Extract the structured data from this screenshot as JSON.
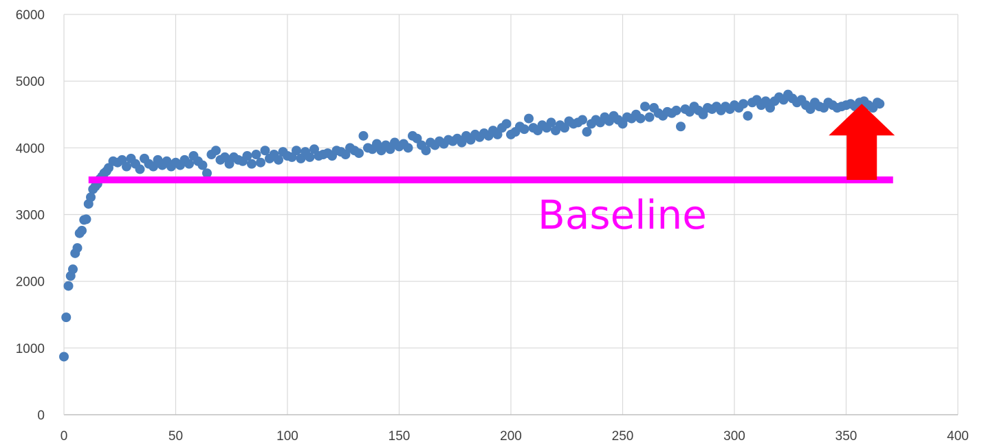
{
  "chart_data": {
    "type": "scatter",
    "title": "",
    "xlabel": "",
    "ylabel": "",
    "xlim": [
      0,
      400
    ],
    "ylim": [
      0,
      6000
    ],
    "x_ticks": [
      0,
      50,
      100,
      150,
      200,
      250,
      300,
      350,
      400
    ],
    "y_ticks": [
      0,
      1000,
      2000,
      3000,
      4000,
      5000,
      6000
    ],
    "x_tick_labels": [
      "0",
      "50",
      "100",
      "150",
      "200",
      "250",
      "300",
      "350",
      "400"
    ],
    "y_tick_labels": [
      "0",
      "1000",
      "2000",
      "3000",
      "4000",
      "5000",
      "6000"
    ],
    "grid": true,
    "legend": "none",
    "series": [
      {
        "color": "#4a7ebb",
        "points": [
          [
            0,
            870
          ],
          [
            1,
            1460
          ],
          [
            2,
            1930
          ],
          [
            3,
            2080
          ],
          [
            4,
            2180
          ],
          [
            5,
            2420
          ],
          [
            6,
            2500
          ],
          [
            7,
            2720
          ],
          [
            8,
            2760
          ],
          [
            9,
            2920
          ],
          [
            10,
            2930
          ],
          [
            11,
            3160
          ],
          [
            12,
            3260
          ],
          [
            13,
            3380
          ],
          [
            14,
            3420
          ],
          [
            15,
            3460
          ],
          [
            16,
            3530
          ],
          [
            17,
            3570
          ],
          [
            18,
            3620
          ],
          [
            19,
            3650
          ],
          [
            20,
            3700
          ],
          [
            22,
            3800
          ],
          [
            24,
            3780
          ],
          [
            26,
            3820
          ],
          [
            28,
            3720
          ],
          [
            30,
            3840
          ],
          [
            32,
            3760
          ],
          [
            34,
            3680
          ],
          [
            36,
            3840
          ],
          [
            38,
            3760
          ],
          [
            40,
            3720
          ],
          [
            42,
            3820
          ],
          [
            44,
            3740
          ],
          [
            46,
            3800
          ],
          [
            48,
            3720
          ],
          [
            50,
            3780
          ],
          [
            52,
            3740
          ],
          [
            54,
            3820
          ],
          [
            56,
            3760
          ],
          [
            58,
            3880
          ],
          [
            60,
            3800
          ],
          [
            62,
            3740
          ],
          [
            64,
            3620
          ],
          [
            66,
            3900
          ],
          [
            68,
            3960
          ],
          [
            70,
            3820
          ],
          [
            72,
            3860
          ],
          [
            74,
            3760
          ],
          [
            76,
            3860
          ],
          [
            78,
            3820
          ],
          [
            80,
            3800
          ],
          [
            82,
            3880
          ],
          [
            84,
            3760
          ],
          [
            86,
            3900
          ],
          [
            88,
            3780
          ],
          [
            90,
            3960
          ],
          [
            92,
            3840
          ],
          [
            94,
            3900
          ],
          [
            96,
            3820
          ],
          [
            98,
            3940
          ],
          [
            100,
            3880
          ],
          [
            102,
            3860
          ],
          [
            104,
            3960
          ],
          [
            106,
            3840
          ],
          [
            108,
            3940
          ],
          [
            110,
            3860
          ],
          [
            112,
            3980
          ],
          [
            114,
            3880
          ],
          [
            116,
            3900
          ],
          [
            118,
            3920
          ],
          [
            120,
            3880
          ],
          [
            122,
            3960
          ],
          [
            124,
            3940
          ],
          [
            126,
            3900
          ],
          [
            128,
            4000
          ],
          [
            130,
            3960
          ],
          [
            132,
            3920
          ],
          [
            134,
            4180
          ],
          [
            136,
            4000
          ],
          [
            138,
            3980
          ],
          [
            140,
            4060
          ],
          [
            142,
            3960
          ],
          [
            144,
            4040
          ],
          [
            146,
            3980
          ],
          [
            148,
            4080
          ],
          [
            150,
            4020
          ],
          [
            152,
            4060
          ],
          [
            154,
            4000
          ],
          [
            156,
            4180
          ],
          [
            158,
            4140
          ],
          [
            160,
            4040
          ],
          [
            162,
            3960
          ],
          [
            164,
            4080
          ],
          [
            166,
            4040
          ],
          [
            168,
            4100
          ],
          [
            170,
            4060
          ],
          [
            172,
            4120
          ],
          [
            174,
            4100
          ],
          [
            176,
            4140
          ],
          [
            178,
            4080
          ],
          [
            180,
            4180
          ],
          [
            182,
            4120
          ],
          [
            184,
            4200
          ],
          [
            186,
            4160
          ],
          [
            188,
            4220
          ],
          [
            190,
            4180
          ],
          [
            192,
            4260
          ],
          [
            194,
            4200
          ],
          [
            196,
            4300
          ],
          [
            198,
            4360
          ],
          [
            200,
            4200
          ],
          [
            202,
            4240
          ],
          [
            204,
            4320
          ],
          [
            206,
            4280
          ],
          [
            208,
            4440
          ],
          [
            210,
            4300
          ],
          [
            212,
            4260
          ],
          [
            214,
            4340
          ],
          [
            216,
            4300
          ],
          [
            218,
            4380
          ],
          [
            220,
            4260
          ],
          [
            222,
            4340
          ],
          [
            224,
            4300
          ],
          [
            226,
            4400
          ],
          [
            228,
            4360
          ],
          [
            230,
            4380
          ],
          [
            232,
            4420
          ],
          [
            234,
            4240
          ],
          [
            236,
            4360
          ],
          [
            238,
            4420
          ],
          [
            240,
            4380
          ],
          [
            242,
            4460
          ],
          [
            244,
            4400
          ],
          [
            246,
            4480
          ],
          [
            248,
            4420
          ],
          [
            250,
            4360
          ],
          [
            252,
            4460
          ],
          [
            254,
            4440
          ],
          [
            256,
            4500
          ],
          [
            258,
            4440
          ],
          [
            260,
            4620
          ],
          [
            262,
            4460
          ],
          [
            264,
            4600
          ],
          [
            266,
            4520
          ],
          [
            268,
            4480
          ],
          [
            270,
            4540
          ],
          [
            272,
            4520
          ],
          [
            274,
            4560
          ],
          [
            276,
            4320
          ],
          [
            278,
            4580
          ],
          [
            280,
            4540
          ],
          [
            282,
            4620
          ],
          [
            284,
            4560
          ],
          [
            286,
            4500
          ],
          [
            288,
            4600
          ],
          [
            290,
            4580
          ],
          [
            292,
            4620
          ],
          [
            294,
            4560
          ],
          [
            296,
            4620
          ],
          [
            298,
            4580
          ],
          [
            300,
            4640
          ],
          [
            302,
            4600
          ],
          [
            304,
            4660
          ],
          [
            306,
            4480
          ],
          [
            308,
            4680
          ],
          [
            310,
            4720
          ],
          [
            312,
            4640
          ],
          [
            314,
            4700
          ],
          [
            316,
            4600
          ],
          [
            318,
            4700
          ],
          [
            320,
            4760
          ],
          [
            322,
            4720
          ],
          [
            324,
            4800
          ],
          [
            326,
            4740
          ],
          [
            328,
            4680
          ],
          [
            330,
            4720
          ],
          [
            332,
            4640
          ],
          [
            334,
            4580
          ],
          [
            336,
            4680
          ],
          [
            338,
            4620
          ],
          [
            340,
            4600
          ],
          [
            342,
            4680
          ],
          [
            344,
            4640
          ],
          [
            346,
            4600
          ],
          [
            348,
            4620
          ],
          [
            350,
            4640
          ],
          [
            352,
            4660
          ],
          [
            354,
            4620
          ],
          [
            356,
            4680
          ],
          [
            358,
            4700
          ],
          [
            360,
            4640
          ],
          [
            362,
            4600
          ],
          [
            364,
            4680
          ],
          [
            365,
            4660
          ]
        ]
      }
    ],
    "annotations": {
      "baseline": {
        "value": 3520,
        "x_from": 11,
        "x_to": 371,
        "color": "#ff00ff",
        "label": "Baseline"
      },
      "arrow": {
        "x": 357,
        "y_from": 3520,
        "y_to": 4660,
        "color": "#ff0000"
      }
    }
  }
}
